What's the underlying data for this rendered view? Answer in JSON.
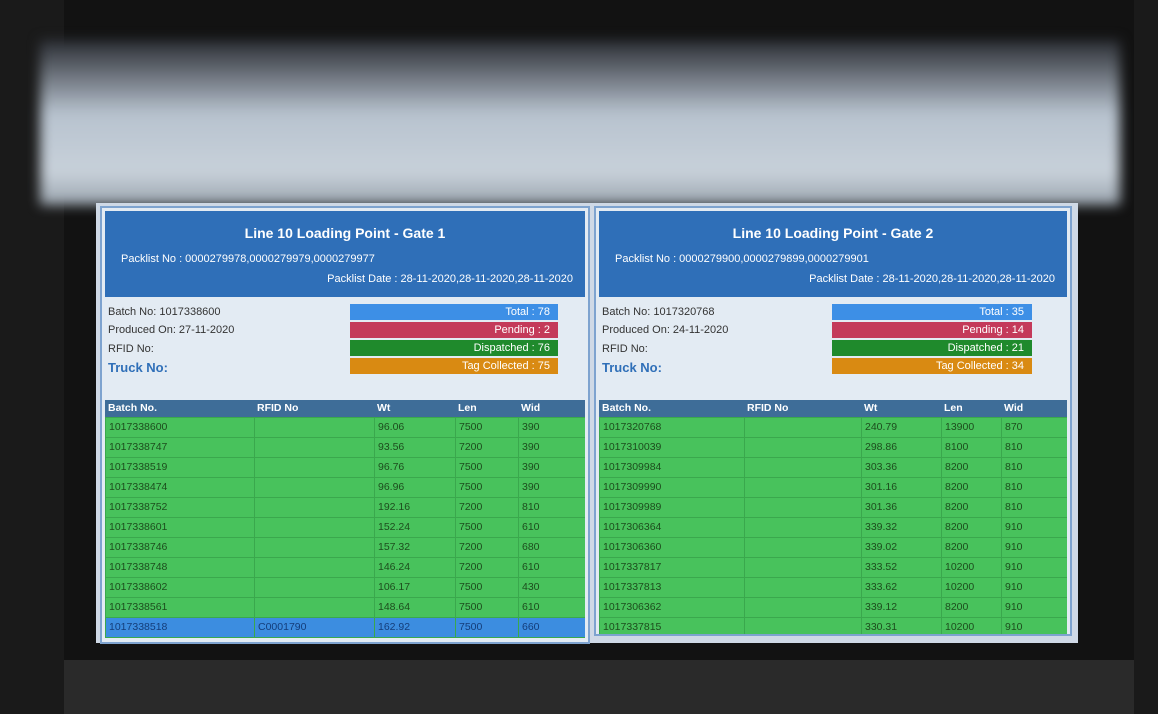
{
  "panels": [
    {
      "title": "Line 10 Loading Point - Gate 1",
      "packlist_no": "Packlist No : 0000279978,0000279979,0000279977",
      "packlist_date": "Packlist Date : 28-11-2020,28-11-2020,28-11-2020",
      "batch_no": "Batch No: 1017338600",
      "produced_on": "Produced On: 27-11-2020",
      "rfid_no": "RFID No:",
      "truck_no": "Truck No:",
      "status": {
        "total": "Total : 78",
        "pending": "Pending : 2",
        "dispatched": "Dispatched : 76",
        "tag_collected": "Tag Collected : 75"
      },
      "table": {
        "headers": [
          "Batch No.",
          "RFID No",
          "Wt",
          "Len",
          "Wid"
        ],
        "rows": [
          {
            "batch": "1017338600",
            "wt": "96.06",
            "len": "7500",
            "wid": "390"
          },
          {
            "batch": "1017338747",
            "wt": "93.56",
            "len": "7200",
            "wid": "390"
          },
          {
            "batch": "1017338519",
            "wt": "96.76",
            "len": "7500",
            "wid": "390"
          },
          {
            "batch": "1017338474",
            "wt": "96.96",
            "len": "7500",
            "wid": "390"
          },
          {
            "batch": "1017338752",
            "wt": "192.16",
            "len": "7200",
            "wid": "810"
          },
          {
            "batch": "1017338601",
            "wt": "152.24",
            "len": "7500",
            "wid": "610"
          },
          {
            "batch": "1017338746",
            "wt": "157.32",
            "len": "7200",
            "wid": "680"
          },
          {
            "batch": "1017338748",
            "wt": "146.24",
            "len": "7200",
            "wid": "610"
          },
          {
            "batch": "1017338602",
            "wt": "106.17",
            "len": "7500",
            "wid": "430"
          },
          {
            "batch": "1017338561",
            "wt": "148.64",
            "len": "7500",
            "wid": "610"
          },
          {
            "batch": "1017338518",
            "rfid": "C0001790",
            "wt": "162.92",
            "len": "7500",
            "wid": "660"
          }
        ]
      }
    },
    {
      "title": "Line 10 Loading Point - Gate 2",
      "packlist_no": "Packlist No : 0000279900,0000279899,0000279901",
      "packlist_date": "Packlist Date : 28-11-2020,28-11-2020,28-11-2020",
      "batch_no": "Batch No: 1017320768",
      "produced_on": "Produced On: 24-11-2020",
      "rfid_no": "RFID No:",
      "truck_no": "Truck No:",
      "status": {
        "total": "Total : 35",
        "pending": "Pending : 14",
        "dispatched": "Dispatched : 21",
        "tag_collected": "Tag Collected : 34"
      },
      "table": {
        "headers": [
          "Batch No.",
          "RFID No",
          "Wt",
          "Len",
          "Wid"
        ],
        "rows": [
          {
            "batch": "1017320768",
            "wt": "240.79",
            "len": "13900",
            "wid": "870"
          },
          {
            "batch": "1017310039",
            "wt": "298.86",
            "len": "8100",
            "wid": "810"
          },
          {
            "batch": "1017309984",
            "wt": "303.36",
            "len": "8200",
            "wid": "810"
          },
          {
            "batch": "1017309990",
            "wt": "301.16",
            "len": "8200",
            "wid": "810"
          },
          {
            "batch": "1017309989",
            "wt": "301.36",
            "len": "8200",
            "wid": "810"
          },
          {
            "batch": "1017306364",
            "wt": "339.32",
            "len": "8200",
            "wid": "910"
          },
          {
            "batch": "1017306360",
            "wt": "339.02",
            "len": "8200",
            "wid": "910"
          },
          {
            "batch": "1017337817",
            "wt": "333.52",
            "len": "10200",
            "wid": "910"
          },
          {
            "batch": "1017337813",
            "wt": "333.62",
            "len": "10200",
            "wid": "910"
          },
          {
            "batch": "1017306362",
            "wt": "339.12",
            "len": "8200",
            "wid": "910"
          },
          {
            "batch": "1017337815",
            "wt": "330.31",
            "len": "10200",
            "wid": "910"
          }
        ]
      }
    }
  ]
}
